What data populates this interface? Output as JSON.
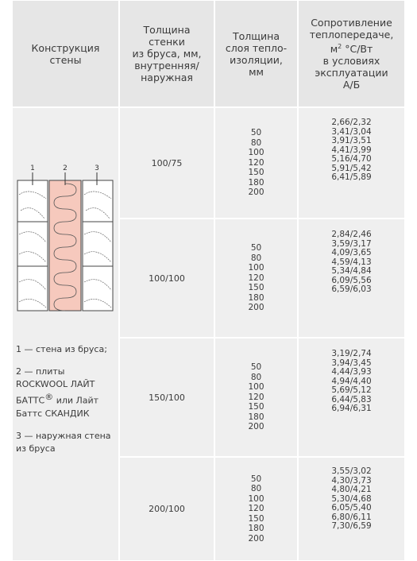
{
  "header": {
    "columns": [
      {
        "lines": [
          "Конструкция",
          "стены"
        ]
      },
      {
        "lines": [
          "Толщина",
          "стенки",
          "из бруса, мм,",
          "внутренняя/",
          "наружная"
        ]
      },
      {
        "lines": [
          "Толщина",
          "слоя тепло-",
          "изоляции,",
          "мм"
        ]
      },
      {
        "lines": [
          "Сопротивление",
          "теплопередаче,"
        ],
        "unit": {
          "base": "м",
          "sup": "2",
          "rest": " °С/Вт"
        },
        "lines_after": [
          "в условиях",
          "эксплуатации",
          "А/Б"
        ]
      }
    ]
  },
  "diagram": {
    "labels": [
      "1",
      "2",
      "3"
    ]
  },
  "notes": [
    {
      "lines": [
        "1 — стена из бруса;"
      ]
    },
    {
      "lines": [
        "2 — плиты",
        "ROCKWOOL ЛАЙТ"
      ],
      "brand": "БАТТС",
      "mark": "®",
      "brand_rest": " или Лайт",
      "lines_after": [
        "Баттс СКАНДИК"
      ]
    },
    {
      "lines": [
        "3 — наружная стена",
        "из бруса"
      ]
    }
  ],
  "table": {
    "rows": [
      {
        "wall": "100/75",
        "insulation": [
          50,
          80,
          100,
          120,
          150,
          180,
          200
        ],
        "resistance": [
          "2,66/2,32",
          "3,41/3,04",
          "3,91/3,51",
          "4,41/3,99",
          "5,16/4,70",
          "5,91/5,42",
          "6,41/5,89"
        ]
      },
      {
        "wall": "100/100",
        "insulation": [
          50,
          80,
          100,
          120,
          150,
          180,
          200
        ],
        "resistance": [
          "2,84/2,46",
          "3,59/3,17",
          "4,09/3,65",
          "4,59/4,13",
          "5,34/4,84",
          "6,09/5,56",
          "6,59/6,03"
        ]
      },
      {
        "wall": "150/100",
        "insulation": [
          50,
          80,
          100,
          120,
          150,
          180,
          200
        ],
        "resistance": [
          "3,19/2,74",
          "3,94/3,45",
          "4,44/3,93",
          "4,94/4,40",
          "5,69/5,12",
          "6,44/5,83",
          "6,94/6,31"
        ]
      },
      {
        "wall": "200/100",
        "insulation": [
          50,
          80,
          100,
          120,
          150,
          180,
          200
        ],
        "resistance": [
          "3,55/3,02",
          "4,30/3,73",
          "4,80/4,21",
          "5,30/4,68",
          "6,05/5,40",
          "6,80/6,11",
          "7,30/6,59"
        ]
      }
    ]
  }
}
